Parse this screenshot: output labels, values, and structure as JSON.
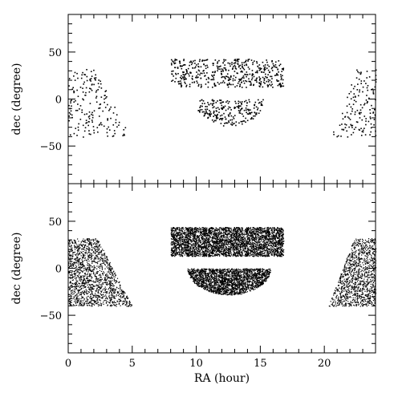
{
  "chart_data": [
    {
      "type": "scatter",
      "panel": "top",
      "xlabel": "",
      "ylabel": "dec (degree)",
      "xlim": [
        0,
        24
      ],
      "ylim": [
        -90,
        90
      ],
      "x_ticks": [],
      "y_ticks": [
        50,
        0,
        -50
      ],
      "y_tick_labels": [
        "50",
        "0",
        "−50"
      ],
      "grid": false,
      "density": "sparse",
      "regions": [
        {
          "ra_range": [
            0,
            4.8
          ],
          "dec_range": [
            -40,
            32
          ],
          "shape": "wedge-west"
        },
        {
          "ra_range": [
            8.0,
            16.8
          ],
          "dec_range": [
            13,
            43
          ],
          "shape": "band"
        },
        {
          "ra_range": [
            9.8,
            15.3
          ],
          "dec_range": [
            -28,
            0
          ],
          "shape": "cap"
        },
        {
          "ra_range": [
            20.5,
            24
          ],
          "dec_range": [
            -40,
            32
          ],
          "shape": "wedge-east"
        }
      ]
    },
    {
      "type": "scatter",
      "panel": "bottom",
      "xlabel": "RA (hour)",
      "ylabel": "dec (degree)",
      "xlim": [
        0,
        24
      ],
      "ylim": [
        -90,
        90
      ],
      "x_ticks": [
        0,
        5,
        10,
        15,
        20
      ],
      "x_tick_labels": [
        "0",
        "5",
        "10",
        "15",
        "20"
      ],
      "y_ticks": [
        50,
        0,
        -50
      ],
      "y_tick_labels": [
        "50",
        "0",
        "−50"
      ],
      "grid": false,
      "density": "dense",
      "regions": [
        {
          "ra_range": [
            0,
            5.0
          ],
          "dec_range": [
            -40,
            32
          ],
          "shape": "wedge-west"
        },
        {
          "ra_range": [
            8.0,
            16.8
          ],
          "dec_range": [
            13,
            44
          ],
          "shape": "band"
        },
        {
          "ra_range": [
            9.3,
            15.8
          ],
          "dec_range": [
            -28,
            0
          ],
          "shape": "cap"
        },
        {
          "ra_range": [
            20.3,
            24
          ],
          "dec_range": [
            -40,
            32
          ],
          "shape": "wedge-east"
        }
      ]
    }
  ]
}
